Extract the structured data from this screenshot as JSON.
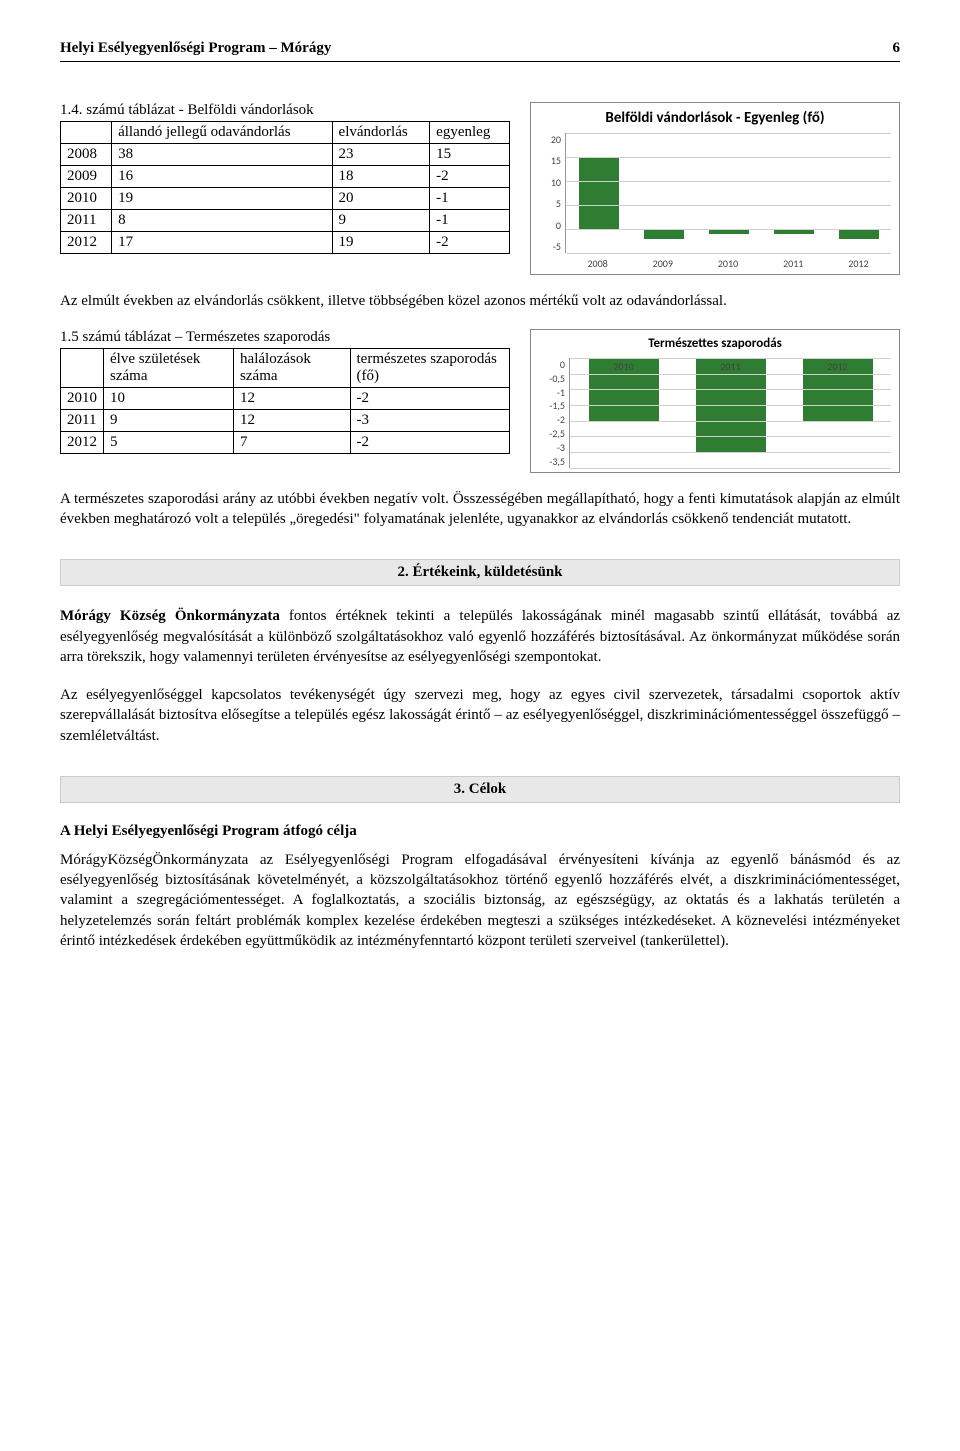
{
  "header": {
    "title": "Helyi Esélyegyenlőségi Program – Mórágy",
    "page": "6"
  },
  "table1": {
    "title": "1.4. számú táblázat - Belföldi vándorlások",
    "cols": [
      "",
      "állandó jellegű odavándorlás",
      "elvándorlás",
      "egyenleg"
    ],
    "rows": [
      [
        "2008",
        "38",
        "23",
        "15"
      ],
      [
        "2009",
        "16",
        "18",
        "-2"
      ],
      [
        "2010",
        "19",
        "20",
        "-1"
      ],
      [
        "2011",
        "8",
        "9",
        "-1"
      ],
      [
        "2012",
        "17",
        "19",
        "-2"
      ]
    ]
  },
  "chart1": {
    "title": "Belföldi vándorlások - Egyenleg (fő)",
    "type": "bar",
    "categories": [
      "2008",
      "2009",
      "2010",
      "2011",
      "2012"
    ],
    "values": [
      15,
      -2,
      -1,
      -1,
      -2
    ],
    "ylim": [
      -5,
      20
    ],
    "yticks": [
      20,
      15,
      10,
      5,
      0,
      -5
    ],
    "bar_color": "#2e7d32",
    "background_color": "#ffffff",
    "grid_color": "#d0d0d0",
    "title_fontsize": 15,
    "label_fontsize": 10
  },
  "para1": "Az elmúlt években az elvándorlás csökkent, illetve többségében közel azonos mértékű volt az odavándorlással.",
  "table2": {
    "title": "1.5 számú táblázat – Természetes szaporodás",
    "cols": [
      "",
      "élve születések száma",
      "halálozások száma",
      "természetes szaporodás (fő)"
    ],
    "rows": [
      [
        "2010",
        "10",
        "12",
        "-2"
      ],
      [
        "2011",
        "9",
        "12",
        "-3"
      ],
      [
        "2012",
        "5",
        "7",
        "-2"
      ]
    ]
  },
  "chart2": {
    "title": "Természettes szaporodás",
    "type": "bar",
    "categories": [
      "2010",
      "2011",
      "2012"
    ],
    "values": [
      -2,
      -3,
      -2
    ],
    "ylim": [
      -3.5,
      0
    ],
    "yticks": [
      "0",
      "-0,5",
      "-1",
      "-1,5",
      "-2",
      "-2,5",
      "-3",
      "-3,5"
    ],
    "bar_color": "#2e7d32",
    "background_color": "#ffffff",
    "grid_color": "#d0d0d0",
    "title_fontsize": 13,
    "label_fontsize": 10
  },
  "para2": "A természetes szaporodási arány az utóbbi években negatív volt. Összességében megállapítható, hogy a fenti kimutatások alapján az elmúlt években meghatározó volt a település „öregedési\" folyamatának jelenléte, ugyanakkor az elvándorlás csökkenő tendenciát mutatott.",
  "section2": {
    "heading": "2. Értékeink, küldetésünk",
    "p1": "Mórágy Község Önkormányzata fontos értéknek tekinti a település lakosságának minél magasabb szintű ellátását, továbbá az esélyegyenlőség megvalósítását a különböző szolgáltatásokhoz való egyenlő hozzáférés biztosításával. Az önkormányzat működése során arra törekszik, hogy valamennyi területen érvényesítse az esélyegyenlőségi szempontokat.",
    "p2": "Az esélyegyenlőséggel kapcsolatos tevékenységét úgy szervezi meg, hogy az egyes civil szervezetek, társadalmi csoportok aktív szerepvállalását biztosítva elősegítse a település egész lakosságát érintő – az esélyegyenlőséggel, diszkriminációmentességgel összefüggő – szemléletváltást."
  },
  "section3": {
    "heading": "3. Célok",
    "subheading": "A Helyi Esélyegyenlőségi Program átfogó célja",
    "p1": "MórágyKözségÖnkormányzata az Esélyegyenlőségi Program elfogadásával érvényesíteni kívánja az egyenlő bánásmód és az esélyegyenlőség biztosításának követelményét, a közszolgáltatásokhoz történő egyenlő hozzáférés elvét, a diszkriminációmentességet, valamint a szegregációmentességet. A foglalkoztatás, a szociális biztonság, az egészségügy, az oktatás és a lakhatás területén a helyzetelemzés során feltárt problémák komplex kezelése érdekében megteszi a szükséges intézkedéseket. A köznevelési intézményeket érintő intézkedések érdekében együttműködik az intézményfenntartó központ területi szerveivel (tankerülettel)."
  }
}
